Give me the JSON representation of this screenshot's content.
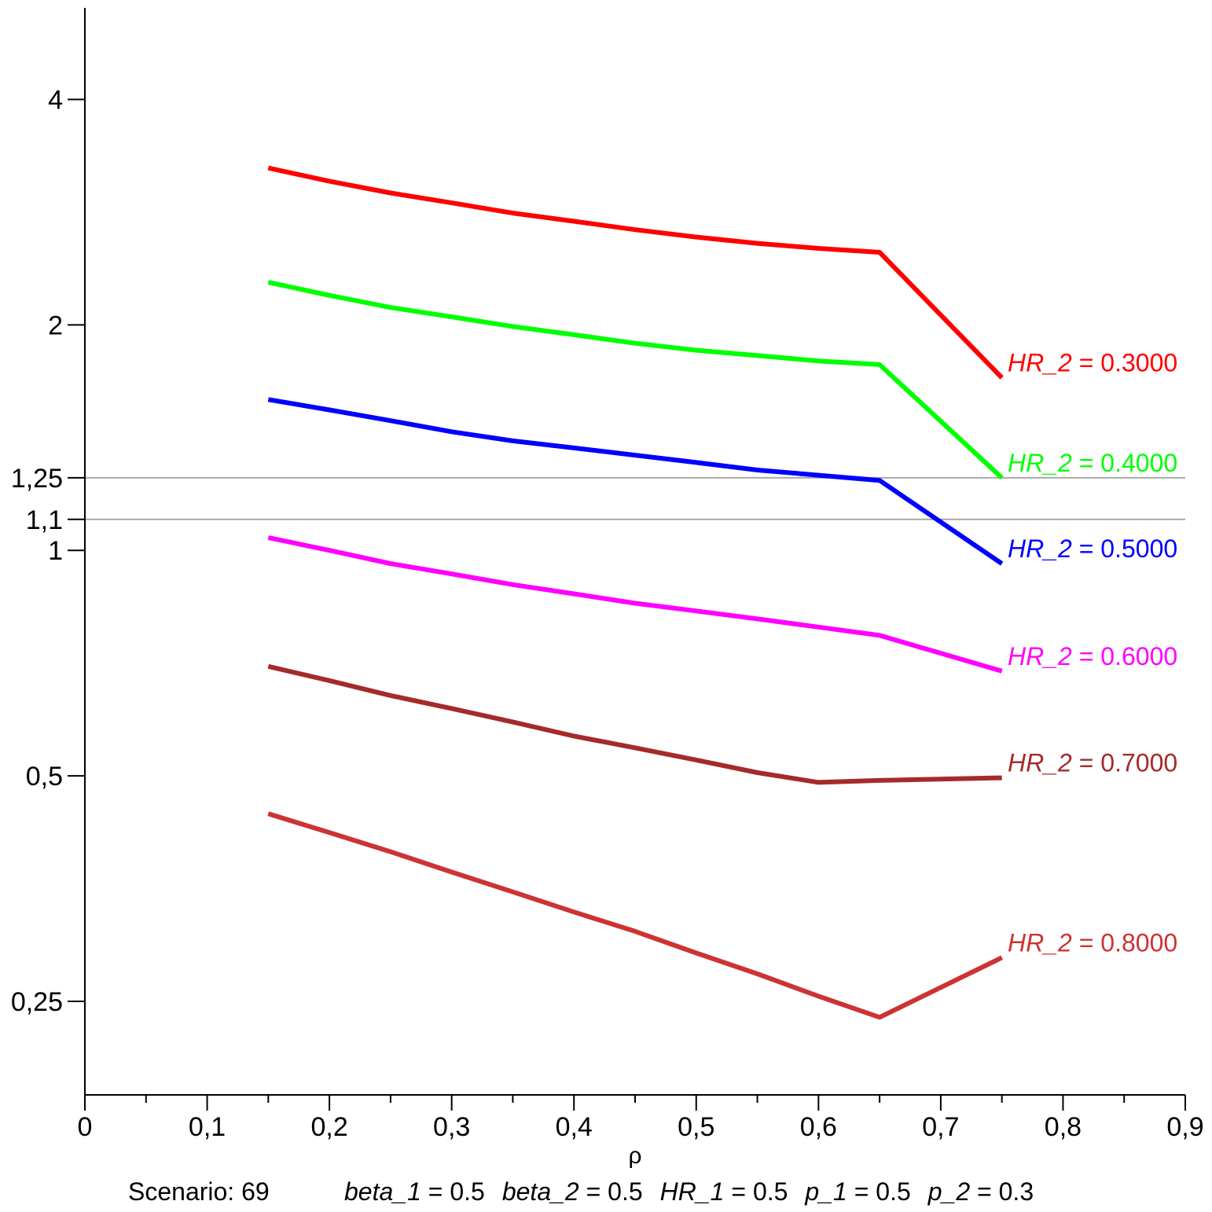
{
  "chart_data": {
    "type": "line",
    "title": "",
    "xlabel": "ρ",
    "ylabel": "",
    "y_scale": "log2",
    "xlim": [
      0,
      0.9
    ],
    "ylim": [
      0.1875,
      5.3
    ],
    "grid": false,
    "x_ticks": [
      {
        "value": 0,
        "label": "0"
      },
      {
        "value": 0.1,
        "label": "0,1"
      },
      {
        "value": 0.2,
        "label": "0,2"
      },
      {
        "value": 0.3,
        "label": "0,3"
      },
      {
        "value": 0.4,
        "label": "0,4"
      },
      {
        "value": 0.5,
        "label": "0,5"
      },
      {
        "value": 0.6,
        "label": "0,6"
      },
      {
        "value": 0.7,
        "label": "0,7"
      },
      {
        "value": 0.8,
        "label": "0,8"
      },
      {
        "value": 0.9,
        "label": "0,9"
      }
    ],
    "x_minor_ticks": [
      0.05,
      0.15,
      0.25,
      0.35,
      0.45,
      0.55,
      0.65,
      0.75,
      0.85
    ],
    "y_ticks": [
      {
        "value": 4,
        "label": "4"
      },
      {
        "value": 2,
        "label": "2"
      },
      {
        "value": 1.25,
        "label": "1,25"
      },
      {
        "value": 1.1,
        "label": "1,1"
      },
      {
        "value": 1,
        "label": "1"
      },
      {
        "value": 0.5,
        "label": "0,5"
      },
      {
        "value": 0.25,
        "label": "0,25"
      }
    ],
    "reference_lines": [
      {
        "y": 1.25,
        "color": "#a9a9a9"
      },
      {
        "y": 1.1,
        "color": "#a9a9a9"
      }
    ],
    "x": [
      0.15,
      0.2,
      0.25,
      0.3,
      0.35,
      0.4,
      0.45,
      0.5,
      0.55,
      0.6,
      0.65,
      0.75
    ],
    "series": [
      {
        "label_name": "HR_2",
        "label_value": "0.3000",
        "color": "#ff0000",
        "values": [
          3.24,
          3.11,
          3.0,
          2.91,
          2.82,
          2.75,
          2.68,
          2.62,
          2.57,
          2.53,
          2.5,
          1.7
        ]
      },
      {
        "label_name": "HR_2",
        "label_value": "0.4000",
        "color": "#00ff00",
        "values": [
          2.28,
          2.19,
          2.11,
          2.05,
          1.99,
          1.94,
          1.89,
          1.85,
          1.82,
          1.79,
          1.77,
          1.25
        ]
      },
      {
        "label_name": "HR_2",
        "label_value": "0.5000",
        "color": "#0000ff",
        "values": [
          1.59,
          1.54,
          1.49,
          1.44,
          1.4,
          1.37,
          1.34,
          1.31,
          1.28,
          1.26,
          1.24,
          0.96
        ]
      },
      {
        "label_name": "HR_2",
        "label_value": "0.6000",
        "color": "#ff00ff",
        "values": [
          1.04,
          1.0,
          0.96,
          0.93,
          0.9,
          0.875,
          0.85,
          0.83,
          0.81,
          0.79,
          0.77,
          0.69
        ]
      },
      {
        "label_name": "HR_2",
        "label_value": "0.7000",
        "color": "#a52a2a",
        "values": [
          0.7,
          0.67,
          0.64,
          0.615,
          0.59,
          0.565,
          0.545,
          0.525,
          0.505,
          0.49,
          0.493,
          0.497
        ]
      },
      {
        "label_name": "HR_2",
        "label_value": "0.8000",
        "color": "#cd3333",
        "values": [
          0.445,
          0.42,
          0.396,
          0.372,
          0.35,
          0.329,
          0.31,
          0.29,
          0.272,
          0.254,
          0.238,
          0.286
        ]
      }
    ]
  },
  "footer": {
    "scenario": "Scenario: 69",
    "params": [
      {
        "name": "beta_1",
        "value": "0.5"
      },
      {
        "name": "beta_2",
        "value": "0.5"
      },
      {
        "name": "HR_1",
        "value": "0.5"
      },
      {
        "name": "p_1",
        "value": "0.5"
      },
      {
        "name": "p_2",
        "value": "0.3"
      }
    ]
  }
}
